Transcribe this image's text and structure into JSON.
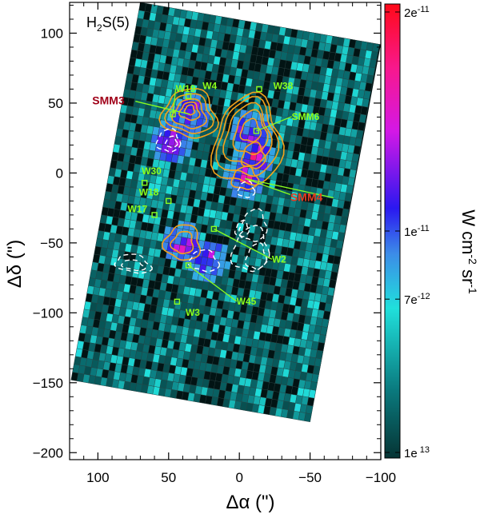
{
  "chart_data": {
    "type": "heatmap",
    "title": "H2S(5)",
    "title_main": "H",
    "title_sub": "2",
    "title_tail": "S(5)",
    "xlabel": "Δα (\")",
    "ylabel": "Δδ (\")",
    "xlim": [
      120,
      -100
    ],
    "ylim": [
      -205,
      122
    ],
    "x_ticks": [
      100,
      50,
      0,
      -50,
      -100
    ],
    "x_tick_labels": [
      "100",
      "50",
      "0",
      "−50",
      "−100"
    ],
    "y_ticks": [
      100,
      50,
      0,
      -50,
      -100,
      -150,
      -200
    ],
    "y_tick_labels": [
      "100",
      "50",
      "0",
      "−50",
      "−100",
      "−150",
      "−200"
    ],
    "colorbar": {
      "label": "W cm-2 sr-1",
      "label_parts": [
        "W cm",
        "-2",
        " sr",
        "-1"
      ],
      "tick_labels": [
        "2e-11",
        "1e-11",
        "7e-12",
        "1e 13"
      ],
      "tick_values": [
        2e-11,
        1e-11,
        7e-12,
        1e-13
      ]
    },
    "map_corners": [
      [
        119,
        -148
      ],
      [
        70,
        122
      ],
      [
        -100,
        92
      ],
      [
        -50,
        -178
      ]
    ],
    "sources_green": [
      {
        "name": "W19",
        "x": 47,
        "y": 42,
        "label_x": 45,
        "label_y": 58
      },
      {
        "name": "W4",
        "x": 36,
        "y": 55,
        "label_x": 26,
        "label_y": 60
      },
      {
        "name": "W38",
        "x": -14,
        "y": 60,
        "label_x": -24,
        "label_y": 60
      },
      {
        "name": "SMM6",
        "x": -12,
        "y": 30,
        "label_x": -37,
        "label_y": 38
      },
      {
        "name": "W30",
        "x": 67,
        "y": -7,
        "label_x": 69,
        "label_y": -1
      },
      {
        "name": "W18",
        "x": 50,
        "y": -20,
        "label_x": 71,
        "label_y": -16
      },
      {
        "name": "W17",
        "x": 60,
        "y": -30,
        "label_x": 79,
        "label_y": -28
      },
      {
        "name": "W2",
        "x": 18,
        "y": -40,
        "label_x": -23,
        "label_y": -64
      },
      {
        "name": "W45",
        "x": 36,
        "y": -66,
        "label_x": 2,
        "label_y": -94
      },
      {
        "name": "W3",
        "x": 44,
        "y": -92,
        "label_x": 38,
        "label_y": -102
      }
    ],
    "sources_red": [
      {
        "name": "SMM3",
        "x": 35,
        "y": 42,
        "label_x": 104,
        "label_y": 49,
        "color": "#a00018"
      },
      {
        "name": "SMM4",
        "x": -4,
        "y": -4,
        "label_x": -36,
        "label_y": -20,
        "color": "#e83a20"
      }
    ]
  }
}
